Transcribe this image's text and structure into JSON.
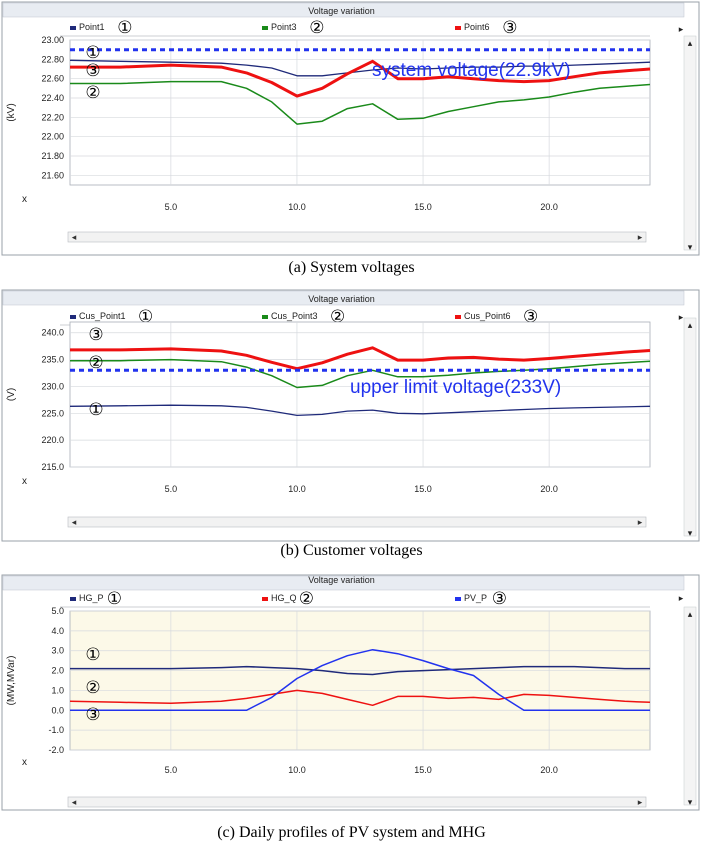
{
  "charts": [
    {
      "title": "Voltage variation",
      "legend": [
        {
          "name": "Point1",
          "color": "#1f2a7a",
          "marker": "①"
        },
        {
          "name": "Point3",
          "color": "#1a8a1a",
          "marker": "②"
        },
        {
          "name": "Point6",
          "color": "#ee1111",
          "marker": "③"
        }
      ],
      "caption": "(a)  System  voltages",
      "annotation": "system voltage(22.9kV)",
      "line_markers": [
        "①",
        "③",
        "②"
      ],
      "x_axis_label": "x",
      "scroll_left": "◂",
      "scroll_right": "▸",
      "scroll_up": "▴",
      "scroll_down": "▾"
    },
    {
      "title": "Voltage variation",
      "legend": [
        {
          "name": "Cus_Point1",
          "color": "#1f2a7a",
          "marker": "①"
        },
        {
          "name": "Cus_Point3",
          "color": "#1a8a1a",
          "marker": "②"
        },
        {
          "name": "Cus_Point6",
          "color": "#ee1111",
          "marker": "③"
        }
      ],
      "caption": "(b)  Customer  voltages",
      "annotation": "upper limit voltage(233V)",
      "line_markers": [
        "③",
        "②",
        "①"
      ],
      "x_axis_label": "x",
      "scroll_left": "◂",
      "scroll_right": "▸",
      "scroll_up": "▴",
      "scroll_down": "▾"
    },
    {
      "title": "Voltage variation",
      "legend": [
        {
          "name": "HG_P",
          "color": "#1f2a7a",
          "marker": "①"
        },
        {
          "name": "HG_Q",
          "color": "#ee1111",
          "marker": "②"
        },
        {
          "name": "PV_P",
          "color": "#2233ee",
          "marker": "③"
        }
      ],
      "caption": "(c)  Daily  profiles  of  PV  system  and  MHG",
      "annotation": "",
      "line_markers": [
        "①",
        "②",
        "③"
      ],
      "x_axis_label": "x",
      "scroll_left": "◂",
      "scroll_right": "▸",
      "scroll_up": "▴",
      "scroll_down": "▾"
    }
  ],
  "chart_data": [
    {
      "type": "line",
      "title": "Voltage variation",
      "xlabel": "x",
      "ylabel": "(kV)",
      "xlim": [
        1,
        24
      ],
      "ylim": [
        21.5,
        23.0
      ],
      "xticks": [
        5.0,
        10.0,
        15.0,
        20.0
      ],
      "yticks": [
        23.0,
        22.8,
        22.6,
        22.4,
        22.2,
        22.0,
        21.8,
        21.6
      ],
      "ytick_labels": [
        "23.00",
        "22.80",
        "22.60",
        "22.40",
        "22.20",
        "22.00",
        "21.80",
        "21.60"
      ],
      "xtick_labels": [
        "5.0",
        "10.0",
        "15.0",
        "20.0"
      ],
      "background": "#ffffff",
      "grid": true,
      "series": [
        {
          "name": "Point1",
          "color": "#1f2a7a",
          "width": 1.3,
          "x": [
            1,
            3,
            5,
            7,
            8,
            9,
            10,
            11,
            12,
            13,
            14,
            15,
            16,
            17,
            18,
            19,
            20,
            21,
            22,
            23,
            24
          ],
          "y": [
            22.79,
            22.78,
            22.77,
            22.76,
            22.74,
            22.71,
            22.63,
            22.63,
            22.66,
            22.69,
            22.71,
            22.7,
            22.71,
            22.72,
            22.72,
            22.73,
            22.73,
            22.74,
            22.75,
            22.76,
            22.77
          ]
        },
        {
          "name": "Point3",
          "color": "#1a8a1a",
          "width": 1.5,
          "x": [
            1,
            3,
            5,
            7,
            8,
            9,
            10,
            11,
            12,
            13,
            14,
            15,
            16,
            17,
            18,
            19,
            20,
            21,
            22,
            23,
            24
          ],
          "y": [
            22.55,
            22.55,
            22.57,
            22.57,
            22.5,
            22.36,
            22.13,
            22.16,
            22.29,
            22.34,
            22.18,
            22.19,
            22.26,
            22.31,
            22.36,
            22.38,
            22.41,
            22.46,
            22.5,
            22.52,
            22.54
          ]
        },
        {
          "name": "Point6",
          "color": "#ee1111",
          "width": 3,
          "x": [
            1,
            3,
            5,
            7,
            8,
            9,
            10,
            11,
            12,
            13,
            14,
            15,
            16,
            17,
            18,
            19,
            20,
            21,
            22,
            23,
            24
          ],
          "y": [
            22.72,
            22.72,
            22.74,
            22.72,
            22.66,
            22.56,
            22.42,
            22.5,
            22.65,
            22.78,
            22.6,
            22.6,
            22.62,
            22.6,
            22.58,
            22.57,
            22.58,
            22.62,
            22.66,
            22.68,
            22.7
          ]
        },
        {
          "name": "system voltage",
          "color": "#2233ee",
          "width": 3,
          "dashed": true,
          "x": [
            1,
            24
          ],
          "y": [
            22.9,
            22.9
          ]
        }
      ]
    },
    {
      "type": "line",
      "title": "Voltage variation",
      "xlabel": "x",
      "ylabel": "(V)",
      "xlim": [
        1,
        24
      ],
      "ylim": [
        215.0,
        242.0
      ],
      "xticks": [
        5.0,
        10.0,
        15.0,
        20.0
      ],
      "yticks": [
        240.0,
        235.0,
        230.0,
        225.0,
        220.0,
        215.0
      ],
      "ytick_labels": [
        "240.0",
        "235.0",
        "230.0",
        "225.0",
        "220.0",
        "215.0"
      ],
      "xtick_labels": [
        "5.0",
        "10.0",
        "15.0",
        "20.0"
      ],
      "background": "#ffffff",
      "grid": true,
      "series": [
        {
          "name": "Cus_Point1",
          "color": "#1f2a7a",
          "width": 1.3,
          "x": [
            1,
            3,
            5,
            7,
            8,
            9,
            10,
            11,
            12,
            13,
            14,
            15,
            16,
            17,
            18,
            19,
            20,
            21,
            22,
            23,
            24
          ],
          "y": [
            226.3,
            226.4,
            226.5,
            226.4,
            226.1,
            225.4,
            224.6,
            224.8,
            225.4,
            225.6,
            225.0,
            224.9,
            225.1,
            225.3,
            225.5,
            225.7,
            225.9,
            226.0,
            226.1,
            226.2,
            226.3
          ]
        },
        {
          "name": "Cus_Point3",
          "color": "#1a8a1a",
          "width": 1.5,
          "x": [
            1,
            3,
            5,
            7,
            8,
            9,
            10,
            11,
            12,
            13,
            14,
            15,
            16,
            17,
            18,
            19,
            20,
            21,
            22,
            23,
            24
          ],
          "y": [
            234.8,
            234.8,
            235.0,
            234.6,
            233.6,
            232.0,
            229.8,
            230.2,
            232.0,
            233.0,
            231.8,
            231.8,
            232.1,
            232.5,
            232.8,
            233.0,
            233.3,
            233.7,
            234.1,
            234.4,
            234.7
          ]
        },
        {
          "name": "Cus_Point6",
          "color": "#ee1111",
          "width": 3,
          "x": [
            1,
            3,
            5,
            7,
            8,
            9,
            10,
            11,
            12,
            13,
            14,
            15,
            16,
            17,
            18,
            19,
            20,
            21,
            22,
            23,
            24
          ],
          "y": [
            236.8,
            236.8,
            237.0,
            236.6,
            235.8,
            234.5,
            233.3,
            234.4,
            236.0,
            237.2,
            234.9,
            234.9,
            235.3,
            235.4,
            235.1,
            234.9,
            235.2,
            235.6,
            236.0,
            236.4,
            236.7
          ]
        },
        {
          "name": "upper limit voltage",
          "color": "#2233ee",
          "width": 3,
          "dashed": true,
          "x": [
            1,
            24
          ],
          "y": [
            233.0,
            233.0
          ]
        }
      ]
    },
    {
      "type": "line",
      "title": "Voltage variation",
      "xlabel": "x",
      "ylabel": "(MW,MVar)",
      "xlim": [
        1,
        24
      ],
      "ylim": [
        -2.0,
        5.0
      ],
      "xticks": [
        5.0,
        10.0,
        15.0,
        20.0
      ],
      "yticks": [
        5.0,
        4.0,
        3.0,
        2.0,
        1.0,
        0.0,
        -1.0,
        -2.0
      ],
      "ytick_labels": [
        "5.0",
        "4.0",
        "3.0",
        "2.0",
        "1.0",
        "0.0",
        "-1.0",
        "-2.0"
      ],
      "xtick_labels": [
        "5.0",
        "10.0",
        "15.0",
        "20.0"
      ],
      "background": "#fcf9e8",
      "grid": true,
      "series": [
        {
          "name": "HG_P",
          "color": "#1f2a7a",
          "width": 1.5,
          "x": [
            1,
            3,
            5,
            7,
            8,
            9,
            10,
            11,
            12,
            13,
            14,
            15,
            16,
            17,
            18,
            19,
            20,
            21,
            22,
            23,
            24
          ],
          "y": [
            2.1,
            2.1,
            2.1,
            2.15,
            2.2,
            2.15,
            2.1,
            2.0,
            1.85,
            1.8,
            1.95,
            2.0,
            2.05,
            2.1,
            2.15,
            2.2,
            2.2,
            2.2,
            2.15,
            2.1,
            2.1
          ]
        },
        {
          "name": "HG_Q",
          "color": "#ee1111",
          "width": 1.5,
          "x": [
            1,
            3,
            5,
            7,
            8,
            9,
            10,
            11,
            12,
            13,
            14,
            15,
            16,
            17,
            18,
            19,
            20,
            21,
            22,
            23,
            24
          ],
          "y": [
            0.45,
            0.4,
            0.35,
            0.45,
            0.6,
            0.8,
            1.0,
            0.85,
            0.55,
            0.25,
            0.7,
            0.7,
            0.6,
            0.65,
            0.55,
            0.8,
            0.75,
            0.65,
            0.55,
            0.45,
            0.4
          ]
        },
        {
          "name": "PV_P",
          "color": "#2233ee",
          "width": 1.5,
          "x": [
            1,
            3,
            5,
            7,
            8,
            9,
            10,
            11,
            12,
            13,
            14,
            15,
            16,
            17,
            18,
            19,
            20,
            21,
            22,
            23,
            24
          ],
          "y": [
            0.0,
            0.0,
            0.0,
            0.0,
            0.0,
            0.65,
            1.6,
            2.25,
            2.75,
            3.05,
            2.85,
            2.5,
            2.1,
            1.75,
            0.8,
            0.0,
            0.0,
            0.0,
            0.0,
            0.0,
            0.0
          ]
        }
      ]
    }
  ]
}
